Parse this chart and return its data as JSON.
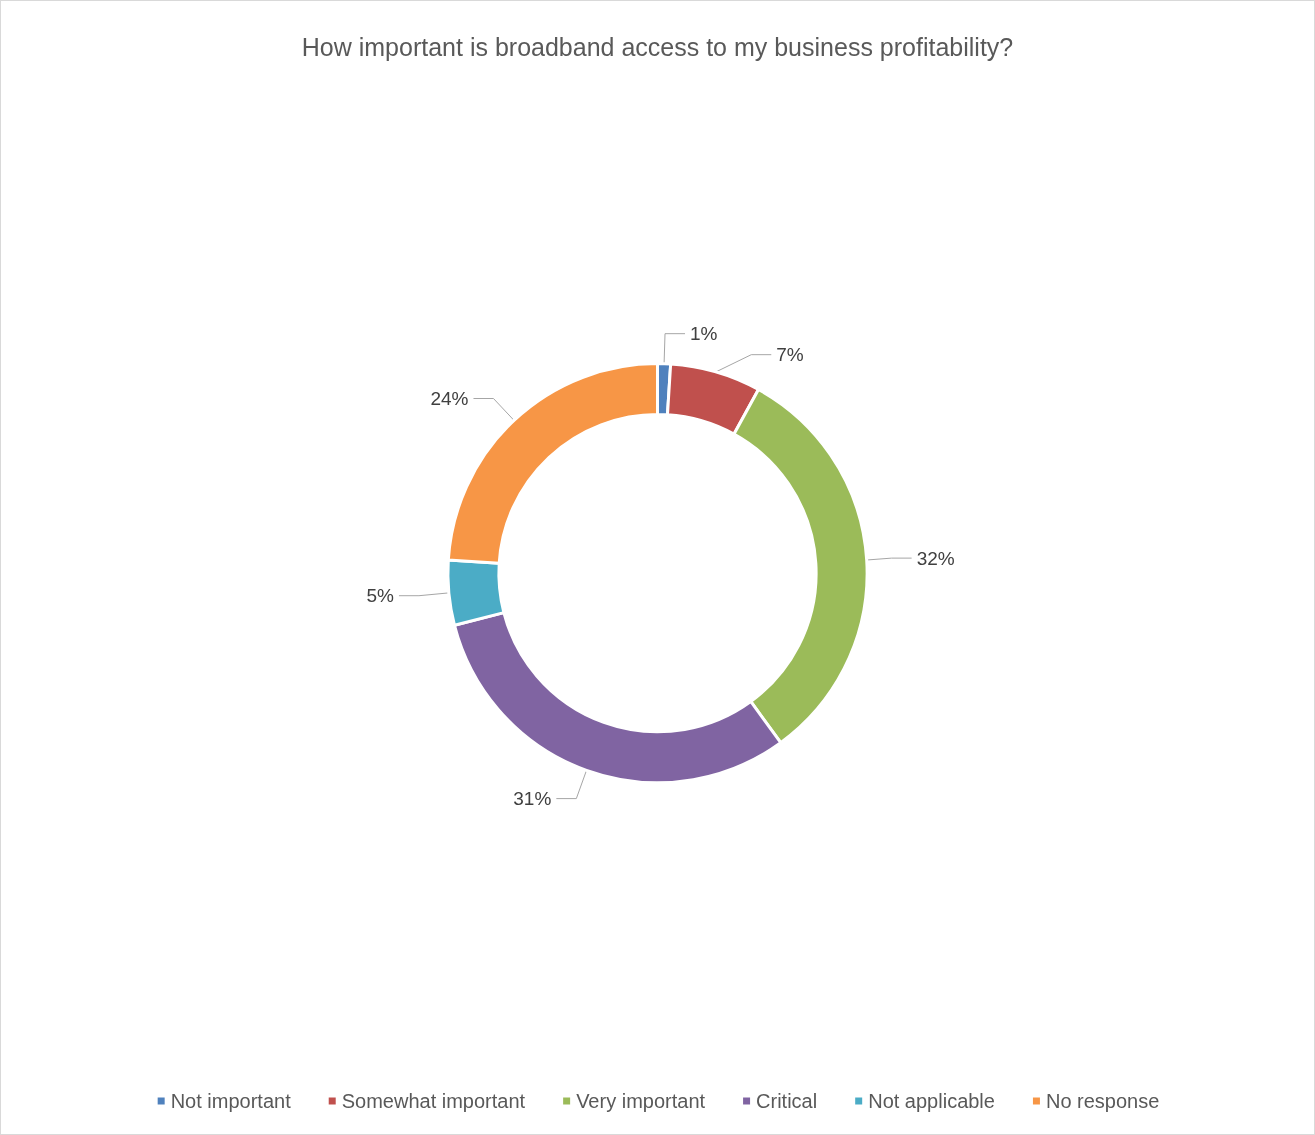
{
  "chart_data": {
    "type": "donut",
    "title": "How important is broadband access to my business profitability?",
    "categories": [
      "Not important",
      "Somewhat important",
      "Very important",
      "Critical",
      "Not applicable",
      "No response"
    ],
    "values": [
      1,
      7,
      32,
      31,
      5,
      24
    ],
    "colors": [
      "#4f81bd",
      "#c0504d",
      "#9bbb59",
      "#8064a2",
      "#4bacc6",
      "#f79646"
    ],
    "value_labels": [
      "1%",
      "7%",
      "32%",
      "31%",
      "5%",
      "24%"
    ],
    "legend": "bottom"
  }
}
